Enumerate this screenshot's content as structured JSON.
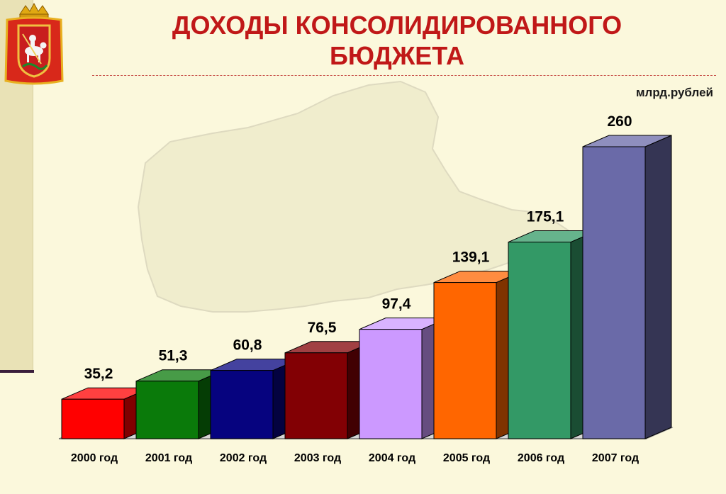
{
  "header": {
    "title_line1": "ДОХОДЫ КОНСОЛИДИРОВАННОГО",
    "title_line2": "БЮДЖЕТА"
  },
  "unit_label": "млрд.рублей",
  "emblem": {
    "icon": "moscow-oblast-coat-of-arms"
  },
  "chart_data": {
    "type": "bar",
    "title": "ДОХОДЫ КОНСОЛИДИРОВАННОГО БЮДЖЕТА",
    "ylabel": "млрд.рублей",
    "xlabel": "",
    "categories": [
      "2000 год",
      "2001 год",
      "2002 год",
      "2003 год",
      "2004 год",
      "2005 год",
      "2006 год",
      "2007 год"
    ],
    "values": [
      35.2,
      51.3,
      60.8,
      76.5,
      97.4,
      139.1,
      175.1,
      260
    ],
    "value_labels": [
      "35,2",
      "51,3",
      "60,8",
      "76,5",
      "97,4",
      "139,1",
      "175,1",
      "260"
    ],
    "colors": [
      "#ff0000",
      "#0a7a0a",
      "#06037f",
      "#820004",
      "#cc99ff",
      "#ff6600",
      "#339966",
      "#6a6aa8"
    ],
    "ylim": [
      0,
      260
    ],
    "grid": false,
    "legend": "none"
  }
}
